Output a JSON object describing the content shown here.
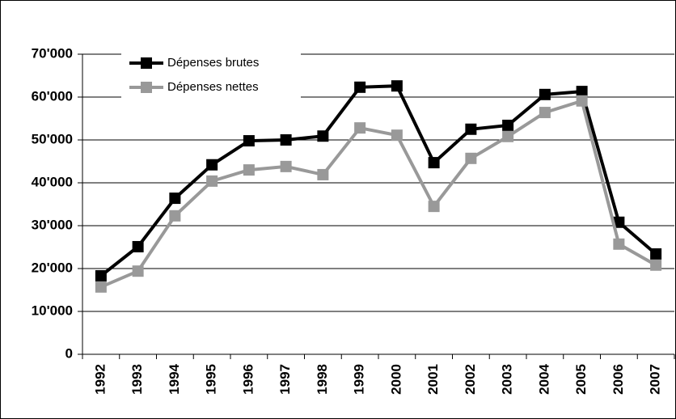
{
  "chart_data": {
    "type": "line",
    "categories": [
      "1992",
      "1993",
      "1994",
      "1995",
      "1996",
      "1997",
      "1998",
      "1999",
      "2000",
      "2001",
      "2002",
      "2003",
      "2004",
      "2005",
      "2006",
      "2007"
    ],
    "series": [
      {
        "name": "Dépenses brutes",
        "color": "#000000",
        "values": [
          18300,
          25100,
          36400,
          44200,
          49800,
          50000,
          50900,
          62300,
          62600,
          44700,
          52500,
          53400,
          60600,
          61300,
          30800,
          23400
        ]
      },
      {
        "name": "Dépenses nettes",
        "color": "#999999",
        "values": [
          15700,
          19400,
          32300,
          40400,
          43000,
          43800,
          41900,
          52800,
          51100,
          34500,
          45700,
          50800,
          56400,
          59100,
          25700,
          20800
        ]
      }
    ],
    "ylim": [
      0,
      70000
    ],
    "yticks": [
      0,
      {
        "value": 10000,
        "label": "10'000"
      },
      {
        "value": 20000,
        "label": "20'000"
      },
      {
        "value": 30000,
        "label": "30'000"
      },
      {
        "value": 40000,
        "label": "40'000"
      },
      {
        "value": 50000,
        "label": "50'000"
      },
      {
        "value": 60000,
        "label": "60'000"
      },
      {
        "value": 70000,
        "label": "70'000"
      }
    ],
    "grid": true,
    "legend": "upper left"
  }
}
